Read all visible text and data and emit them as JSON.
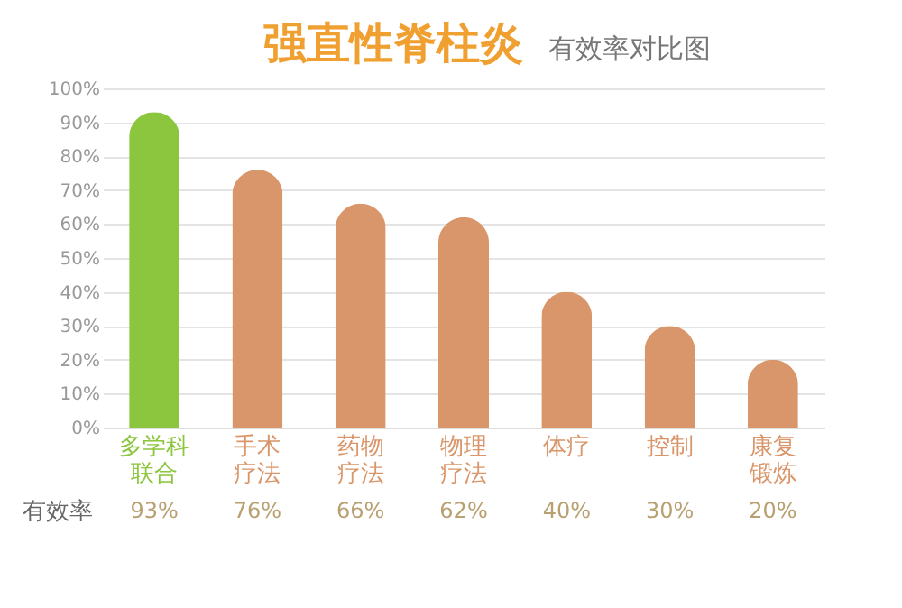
{
  "chart_data": {
    "type": "bar",
    "title": "强直性脊柱炎",
    "subtitle": "有效率对比图",
    "categories": [
      "多学科联合",
      "手术疗法",
      "药物疗法",
      "物理疗法",
      "体疗",
      "控制",
      "康复锻炼"
    ],
    "values": [
      93,
      76,
      66,
      62,
      40,
      30,
      20
    ],
    "colors": [
      "#8cc63f",
      "#d9966a",
      "#d9966a",
      "#d9966a",
      "#d9966a",
      "#d9966a",
      "#d9966a"
    ],
    "value_labels": [
      "93%",
      "76%",
      "66%",
      "62%",
      "40%",
      "30%",
      "20%"
    ],
    "annotations": [
      "有效率"
    ],
    "ylim": [
      0,
      100
    ],
    "yticks": [
      {
        "value": 0,
        "label": "0%"
      },
      {
        "value": 10,
        "label": "10%"
      },
      {
        "value": 20,
        "label": "20%"
      },
      {
        "value": 30,
        "label": "30%"
      },
      {
        "value": 40,
        "label": "40%"
      },
      {
        "value": 50,
        "label": "50%"
      },
      {
        "value": 60,
        "label": "60%"
      },
      {
        "value": 70,
        "label": "70%"
      },
      {
        "value": 80,
        "label": "80%"
      },
      {
        "value": 90,
        "label": "90%"
      },
      {
        "value": 100,
        "label": "100%"
      }
    ],
    "grid": "y",
    "legend": false
  }
}
